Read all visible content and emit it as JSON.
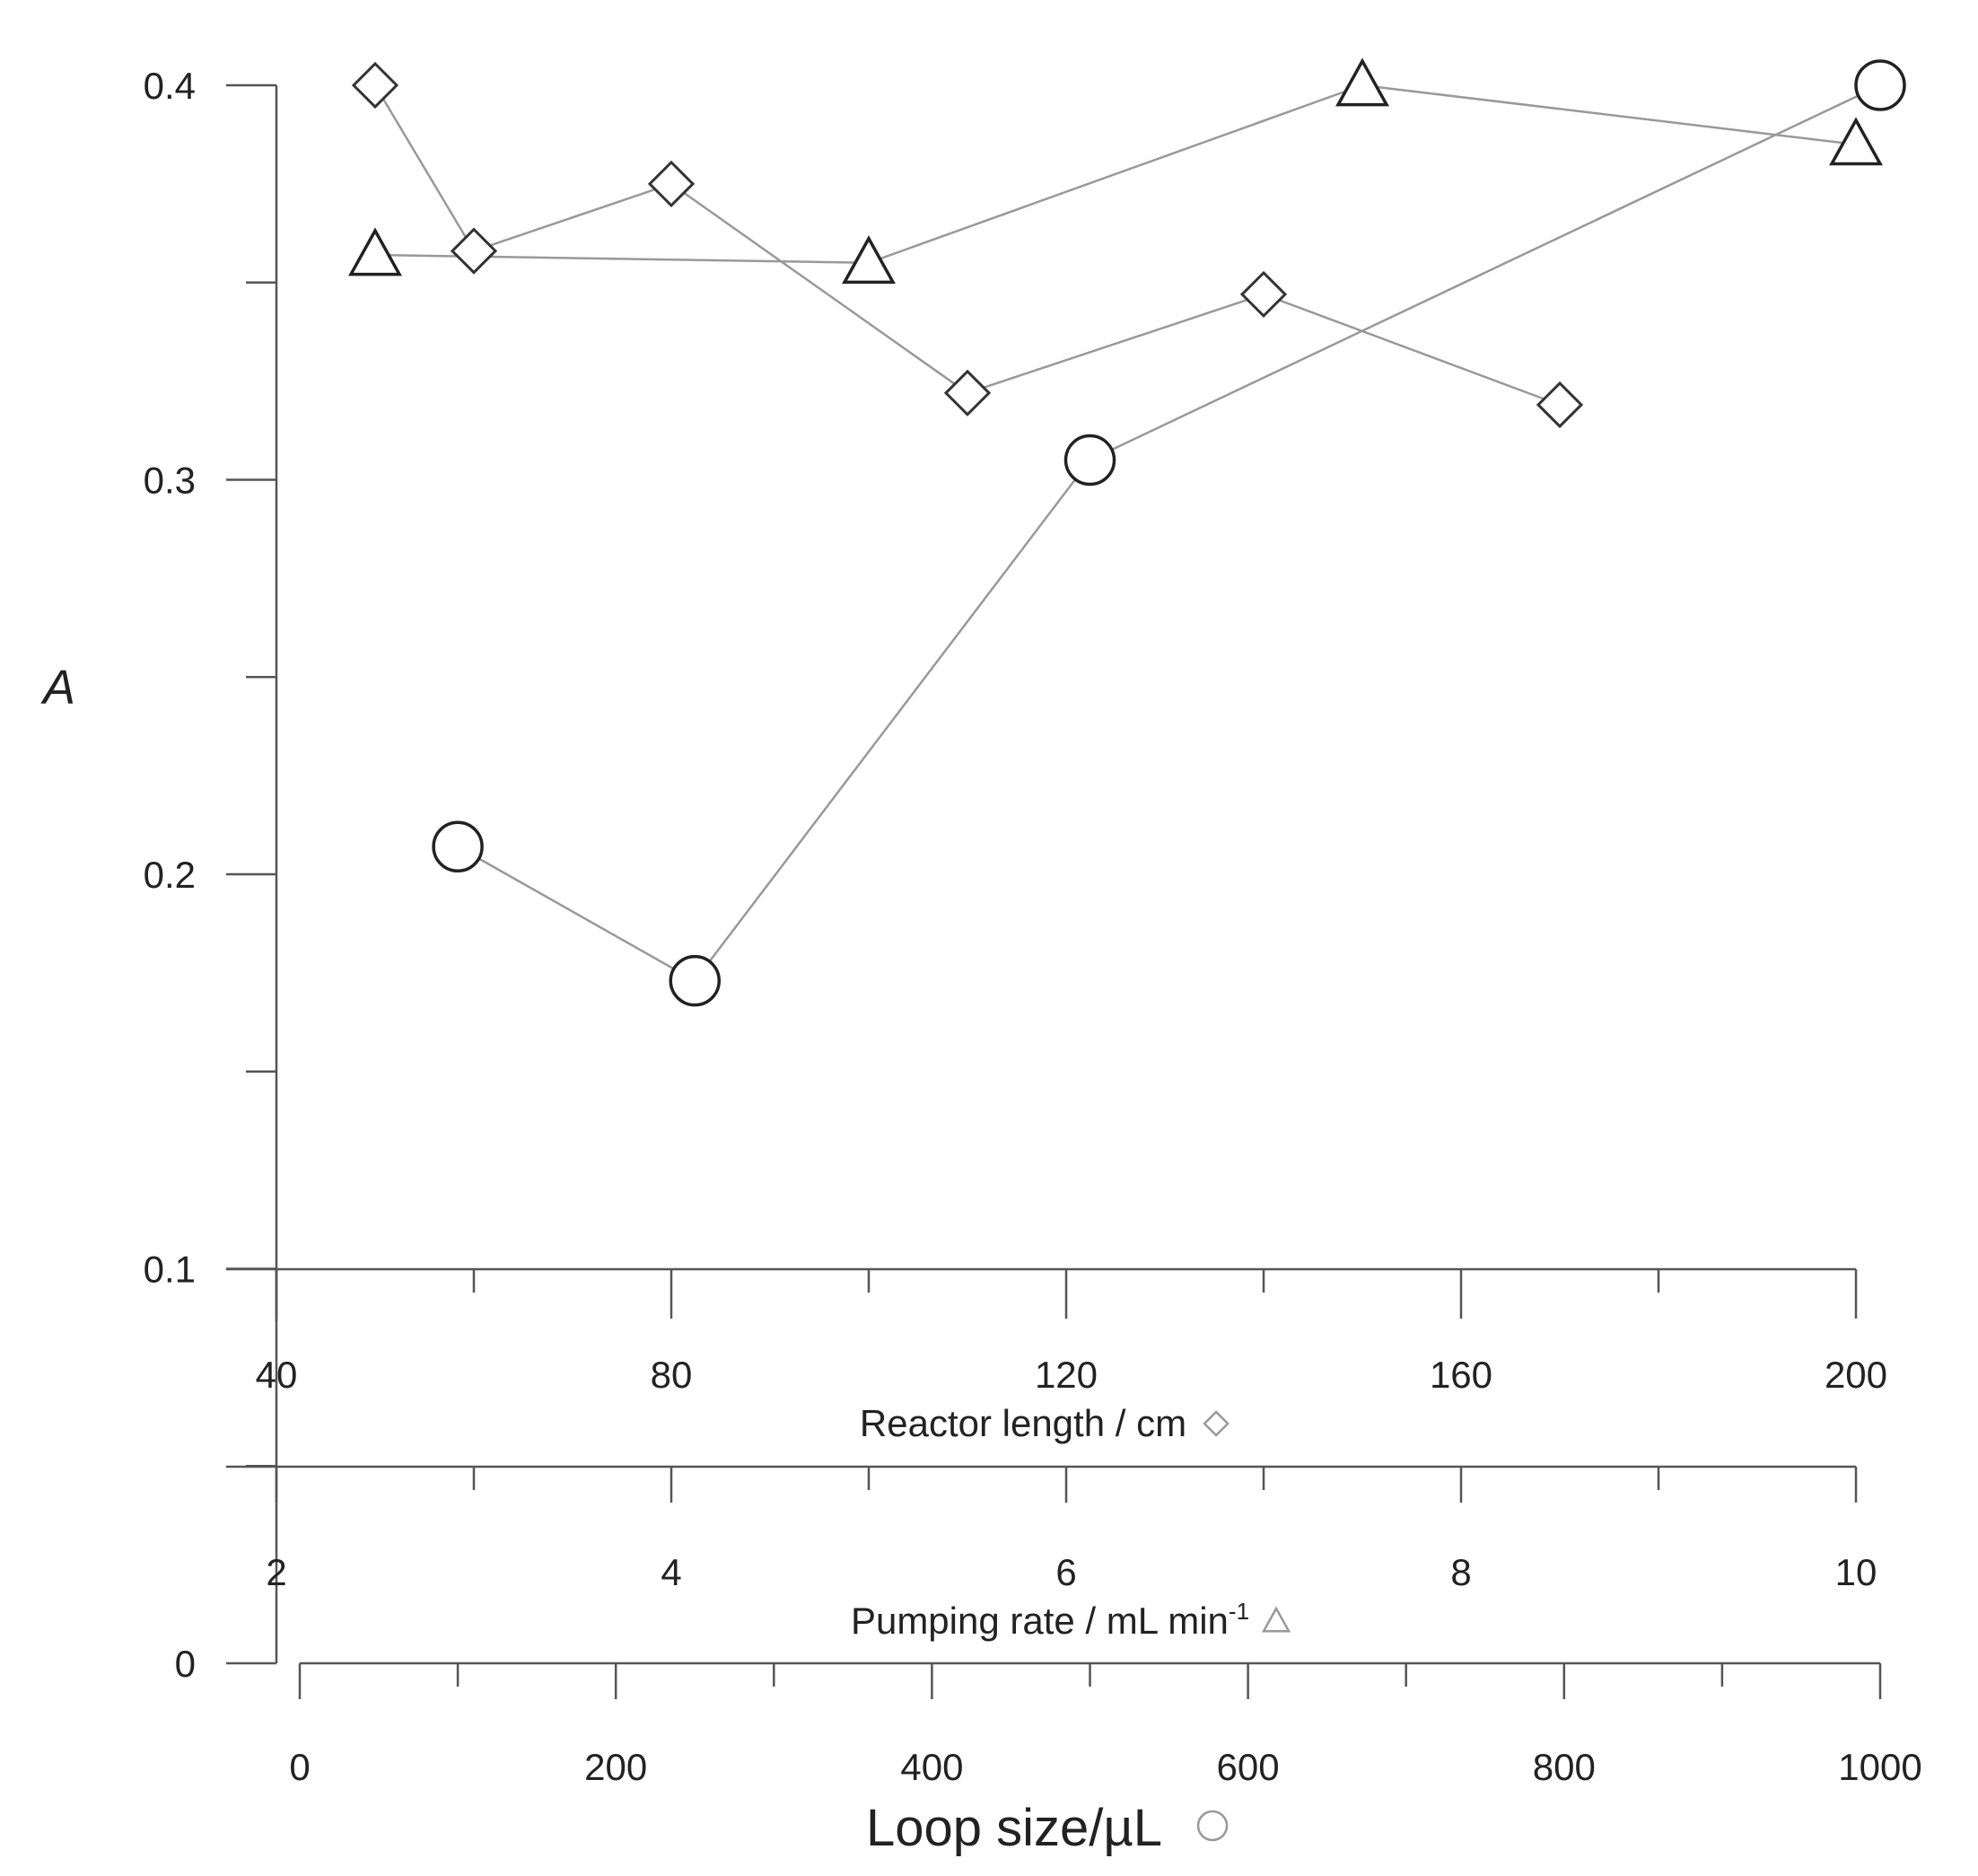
{
  "chart_data": {
    "type": "scatter",
    "y_axis": {
      "label": "A",
      "range": [
        0,
        0.4
      ],
      "ticks": [
        0,
        0.1,
        0.2,
        0.3,
        0.4
      ],
      "tick_labels": [
        "0",
        "0.1",
        "0.2",
        "0.3",
        "0.4"
      ],
      "minor_ticks": [
        0.05,
        0.15,
        0.25,
        0.35
      ]
    },
    "x_axes": [
      {
        "label": "Reactor length / cm",
        "range": [
          40,
          200
        ],
        "ticks": [
          40,
          80,
          120,
          160,
          200
        ],
        "tick_labels": [
          "40",
          "80",
          "120",
          "160",
          "200"
        ],
        "minor_ticks": [
          60,
          100,
          140,
          180
        ],
        "series_marker": "diamond"
      },
      {
        "label": "Pumping rate / mL min",
        "label_superscript": "-1",
        "range": [
          2,
          10
        ],
        "ticks": [
          2,
          4,
          6,
          8,
          10
        ],
        "tick_labels": [
          "2",
          "4",
          "6",
          "8",
          "10"
        ],
        "minor_ticks": [
          3,
          5,
          7,
          9
        ],
        "series_marker": "triangle"
      },
      {
        "label": "Loop size/µL",
        "range": [
          0,
          1000
        ],
        "ticks": [
          0,
          200,
          400,
          600,
          800,
          1000
        ],
        "tick_labels": [
          "0",
          "200",
          "400",
          "600",
          "800",
          "1000"
        ],
        "minor_ticks": [
          100,
          300,
          500,
          700,
          900
        ],
        "series_marker": "circle"
      }
    ],
    "series": [
      {
        "marker": "diamond",
        "axis": 0,
        "x": [
          50,
          60,
          80,
          110,
          140,
          170
        ],
        "y": [
          0.4,
          0.358,
          0.375,
          0.322,
          0.347,
          0.319
        ]
      },
      {
        "marker": "triangle",
        "axis": 1,
        "x": [
          2.5,
          5,
          7.5,
          10
        ],
        "y": [
          0.357,
          0.355,
          0.4,
          0.385
        ]
      },
      {
        "marker": "circle",
        "axis": 2,
        "x": [
          100,
          250,
          500,
          1000
        ],
        "y": [
          0.207,
          0.173,
          0.305,
          0.4
        ]
      }
    ],
    "grid": false,
    "legend": "none"
  }
}
